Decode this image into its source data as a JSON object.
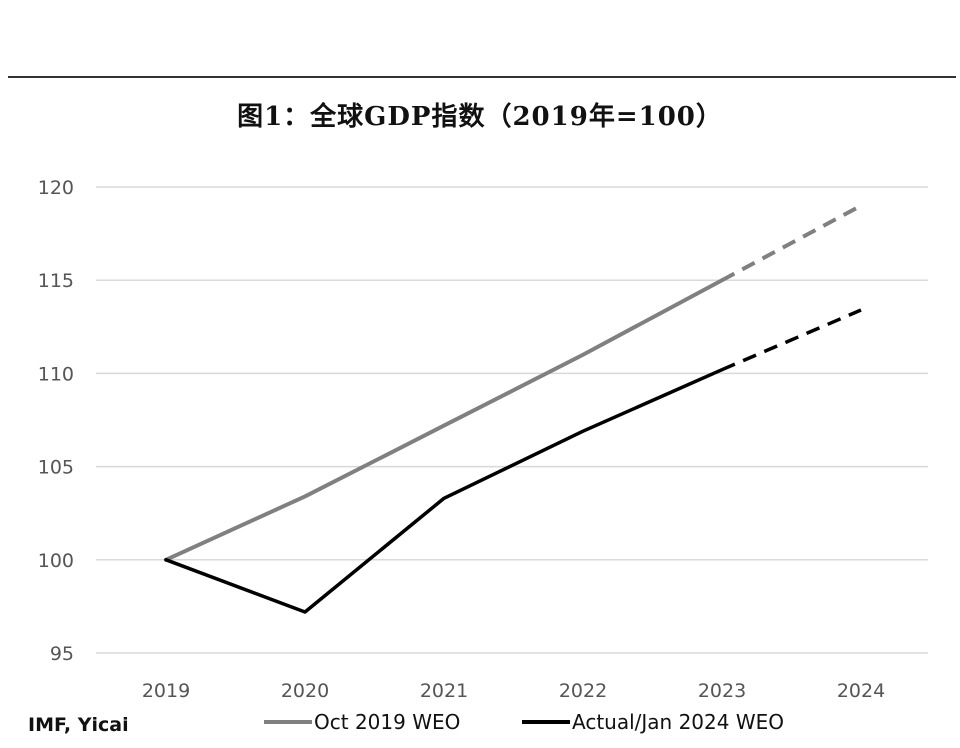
{
  "chart_data": {
    "type": "line",
    "title": "图1：全球GDP指数（2019年=100）",
    "source": "IMF, Yicai",
    "x": [
      "2019",
      "2020",
      "2021",
      "2022",
      "2023",
      "2024"
    ],
    "ylim": [
      95,
      120
    ],
    "yticks": [
      95,
      100,
      105,
      110,
      115,
      120
    ],
    "grid": true,
    "legend_position": "bottom",
    "series": [
      {
        "name": "Oct 2019 WEO",
        "color": "#808080",
        "values": [
          100,
          103.4,
          107.2,
          111.0,
          115.0,
          119.0
        ],
        "dashed_from_index": 4
      },
      {
        "name": "Actual/Jan 2024 WEO",
        "color": "#000000",
        "values": [
          100,
          97.2,
          103.3,
          106.9,
          110.2,
          113.4
        ],
        "dashed_from_index": 4
      }
    ]
  }
}
